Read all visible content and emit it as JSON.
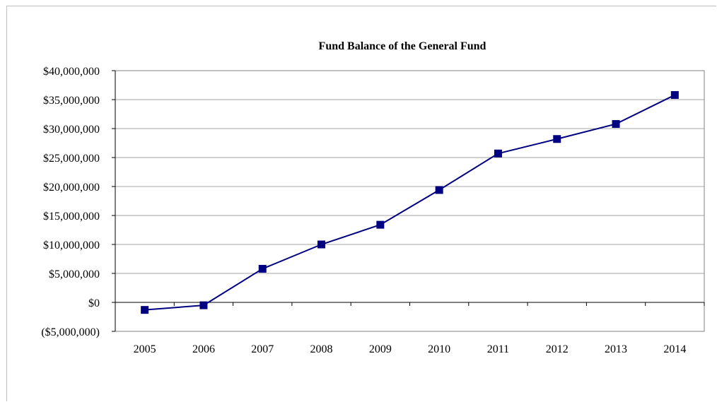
{
  "chart_data": {
    "type": "line",
    "title": "Fund Balance of the General Fund",
    "xlabel": "",
    "ylabel": "",
    "categories": [
      "2005",
      "2006",
      "2007",
      "2008",
      "2009",
      "2010",
      "2011",
      "2012",
      "2013",
      "2014"
    ],
    "series": [
      {
        "values": [
          -1300000,
          -500000,
          5800000,
          10000000,
          13400000,
          19400000,
          25700000,
          28200000,
          30800000,
          35800000
        ],
        "color": "#000080",
        "marker": "square"
      }
    ],
    "ylim": [
      -5000000,
      40000000
    ],
    "yticks": [
      -5000000,
      0,
      5000000,
      10000000,
      15000000,
      20000000,
      25000000,
      30000000,
      35000000,
      40000000
    ],
    "ytick_labels": [
      "($5,000,000)",
      "$0",
      "$5,000,000",
      "$10,000,000",
      "$15,000,000",
      "$20,000,000",
      "$25,000,000",
      "$30,000,000",
      "$35,000,000",
      "$40,000,000"
    ],
    "grid": true,
    "legend": "none"
  }
}
